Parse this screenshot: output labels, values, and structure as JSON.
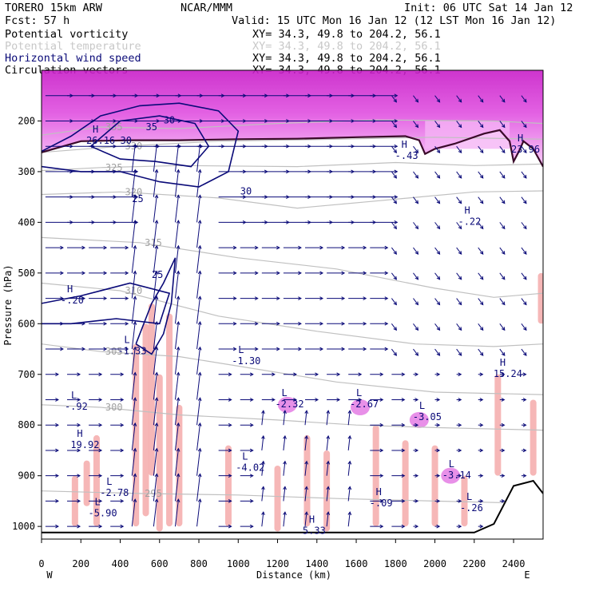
{
  "header": {
    "model": "TORERO  15km ARW",
    "center": "NCAR/MMM",
    "init": "Init: 06 UTC Sat 14 Jan 12",
    "fcst": "Fcst:   57 h",
    "valid": "Valid: 15 UTC Mon 16 Jan 12 (12 LST Mon 16 Jan 12)"
  },
  "legend": [
    {
      "name": "Potential vorticity",
      "xy": "XY=  34.3, 49.8 to 204.2, 56.1",
      "color": "#000000"
    },
    {
      "name": "Potential temperature",
      "xy": "XY=  34.3, 49.8 to 204.2, 56.1",
      "color": "#c8c8c8"
    },
    {
      "name": "Horizontal wind speed",
      "xy": "XY=  34.3, 49.8 to 204.2, 56.1",
      "color": "#0a0a78"
    },
    {
      "name": "Circulation vectors",
      "xy": "XY=  34.3, 49.8 to 204.2, 56.1",
      "color": "#000000"
    }
  ],
  "chart_data": {
    "type": "cross-section",
    "xlabel": "Distance (km)",
    "ylabel": "Pressure (hPa)",
    "xlim": [
      0,
      2550
    ],
    "ylim": [
      1025,
      100
    ],
    "x_ticks": [
      0,
      200,
      400,
      600,
      800,
      1000,
      1200,
      1400,
      1600,
      1800,
      2000,
      2200,
      2400
    ],
    "y_ticks": [
      200,
      300,
      400,
      500,
      600,
      700,
      800,
      900,
      1000
    ],
    "x_tick_labels": [
      "0",
      "200",
      "400",
      "600",
      "800",
      "1000",
      "1200",
      "1400",
      "1600",
      "1800",
      "2000",
      "2200",
      "2400"
    ],
    "y_tick_labels": [
      "200",
      "300",
      "400",
      "500",
      "600",
      "700",
      "800",
      "900",
      "1000"
    ],
    "left_end": "W",
    "right_end": "E",
    "colors": {
      "pv_fill_high": "#d21ed2",
      "pv_fill_low": "#f5b4f5",
      "pv_negative": "#f5aaaa",
      "theta": "#c0c0c0",
      "wind": "#0a0a78",
      "vectors": "#0a0a78",
      "pv_contour": "#3a0a2a"
    },
    "theta_lines": [
      {
        "label": "335",
        "points": [
          [
            0,
            228
          ],
          [
            300,
            212
          ],
          [
            700,
            215
          ],
          [
            1200,
            205
          ],
          [
            1700,
            198
          ],
          [
            2300,
            200
          ],
          [
            2550,
            205
          ]
        ]
      },
      {
        "label": "330",
        "points": [
          [
            0,
            262
          ],
          [
            400,
            250
          ],
          [
            900,
            240
          ],
          [
            1500,
            236
          ],
          [
            2000,
            232
          ],
          [
            2550,
            236
          ]
        ]
      },
      {
        "label": "325",
        "points": [
          [
            0,
            298
          ],
          [
            300,
            292
          ],
          [
            700,
            288
          ],
          [
            1300,
            290
          ],
          [
            1800,
            282
          ],
          [
            2200,
            288
          ],
          [
            2550,
            285
          ]
        ]
      },
      {
        "label": "320",
        "points": [
          [
            0,
            345
          ],
          [
            400,
            340
          ],
          [
            900,
            352
          ],
          [
            1300,
            372
          ],
          [
            1700,
            358
          ],
          [
            2200,
            340
          ],
          [
            2550,
            338
          ]
        ]
      },
      {
        "label": "315",
        "points": [
          [
            0,
            430
          ],
          [
            500,
            440
          ],
          [
            1000,
            470
          ],
          [
            1500,
            492
          ],
          [
            2000,
            530
          ],
          [
            2300,
            548
          ],
          [
            2550,
            540
          ]
        ]
      },
      {
        "label": "310",
        "points": [
          [
            0,
            520
          ],
          [
            400,
            535
          ],
          [
            900,
            585
          ],
          [
            1400,
            615
          ],
          [
            1900,
            640
          ],
          [
            2300,
            645
          ],
          [
            2550,
            640
          ]
        ]
      },
      {
        "label": "305",
        "points": [
          [
            0,
            640
          ],
          [
            300,
            655
          ],
          [
            700,
            665
          ],
          [
            1100,
            690
          ],
          [
            1500,
            715
          ],
          [
            2000,
            735
          ],
          [
            2550,
            740
          ]
        ]
      },
      {
        "label": "300",
        "points": [
          [
            0,
            760
          ],
          [
            300,
            765
          ],
          [
            700,
            780
          ],
          [
            1200,
            790
          ],
          [
            1600,
            800
          ],
          [
            2000,
            805
          ],
          [
            2550,
            810
          ]
        ]
      },
      {
        "label": "295",
        "points": [
          [
            0,
            930
          ],
          [
            500,
            935
          ],
          [
            1000,
            938
          ],
          [
            1500,
            945
          ],
          [
            2000,
            950
          ],
          [
            2550,
            955
          ]
        ]
      }
    ],
    "tropopause_contour": [
      [
        0,
        262
      ],
      [
        200,
        240
      ],
      [
        450,
        238
      ],
      [
        700,
        238
      ],
      [
        1000,
        236
      ],
      [
        1300,
        235
      ],
      [
        1600,
        232
      ],
      [
        1850,
        230
      ],
      [
        1920,
        238
      ],
      [
        1950,
        265
      ],
      [
        2000,
        255
      ],
      [
        2100,
        245
      ],
      [
        2250,
        225
      ],
      [
        2330,
        218
      ],
      [
        2380,
        240
      ],
      [
        2400,
        280
      ],
      [
        2430,
        258
      ],
      [
        2450,
        240
      ],
      [
        2500,
        255
      ],
      [
        2550,
        290
      ]
    ],
    "wind_labels": [
      {
        "text": "30",
        "x": 400,
        "y": 245
      },
      {
        "text": "35",
        "x": 530,
        "y": 218
      },
      {
        "text": "30",
        "x": 620,
        "y": 205
      },
      {
        "text": "25",
        "x": 460,
        "y": 360
      },
      {
        "text": "30",
        "x": 1010,
        "y": 345
      },
      {
        "text": "25",
        "x": 560,
        "y": 510
      }
    ],
    "extrema_labels": [
      {
        "kind": "H",
        "value": "26.16",
        "x": 260,
        "y": 245
      },
      {
        "kind": "H",
        "value": "-.20",
        "x": 130,
        "y": 560
      },
      {
        "kind": "L",
        "value": "-1.33",
        "x": 420,
        "y": 660
      },
      {
        "kind": "L",
        "value": "-1.30",
        "x": 1000,
        "y": 680
      },
      {
        "kind": "L",
        "value": "-.92",
        "x": 150,
        "y": 770
      },
      {
        "kind": "H",
        "value": "19.92",
        "x": 180,
        "y": 845
      },
      {
        "kind": "L",
        "value": "-2.32",
        "x": 1220,
        "y": 765
      },
      {
        "kind": "L",
        "value": "-2.67",
        "x": 1600,
        "y": 765
      },
      {
        "kind": "L",
        "value": "-3.05",
        "x": 1920,
        "y": 790
      },
      {
        "kind": "H",
        "value": "15.24",
        "x": 2330,
        "y": 705
      },
      {
        "kind": "H",
        "value": "-.22",
        "x": 2150,
        "y": 405
      },
      {
        "kind": "H",
        "value": "-.43",
        "x": 1830,
        "y": 275
      },
      {
        "kind": "H",
        "value": "23.96",
        "x": 2420,
        "y": 262
      },
      {
        "kind": "L",
        "value": "-3.14",
        "x": 2070,
        "y": 905
      },
      {
        "kind": "L",
        "value": "-2.78",
        "x": 330,
        "y": 940
      },
      {
        "kind": "L",
        "value": "-5.90",
        "x": 270,
        "y": 980
      },
      {
        "kind": "L",
        "value": "-4.02",
        "x": 1020,
        "y": 890
      },
      {
        "kind": "H",
        "value": "5.33",
        "x": 1360,
        "y": 1015
      },
      {
        "kind": "H",
        "value": "-.09",
        "x": 1700,
        "y": 960
      },
      {
        "kind": "L",
        "value": "-.26",
        "x": 2160,
        "y": 970
      }
    ],
    "ground_profile": [
      [
        0,
        1012
      ],
      [
        600,
        1012
      ],
      [
        1200,
        1012
      ],
      [
        1800,
        1012
      ],
      [
        2200,
        1012
      ],
      [
        2300,
        995
      ],
      [
        2400,
        920
      ],
      [
        2500,
        910
      ],
      [
        2550,
        935
      ]
    ]
  }
}
